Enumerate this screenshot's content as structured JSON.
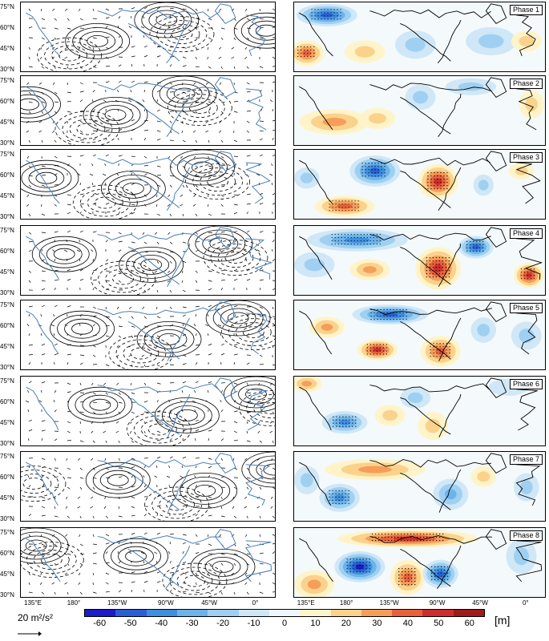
{
  "latitude_labels": [
    "75°N",
    "60°N",
    "45°N",
    "30°N"
  ],
  "longitude_labels": [
    "135°E",
    "180°",
    "135°W",
    "90°W",
    "45°W",
    "0°"
  ],
  "phases": [
    "Phase 1",
    "Phase 2",
    "Phase 3",
    "Phase 4",
    "Phase 5",
    "Phase 6",
    "Phase 7",
    "Phase 8"
  ],
  "colorbar": {
    "ticks": [
      "-60",
      "-50",
      "-40",
      "-30",
      "-20",
      "-10",
      "0",
      "10",
      "20",
      "30",
      "40",
      "50",
      "60"
    ],
    "unit": "[m]",
    "colors": [
      "#1c1cc8",
      "#2a5fd6",
      "#3f8fe0",
      "#6cb3ea",
      "#9fd0f1",
      "#cfe7f7",
      "#eef7fc",
      "#fff4c9",
      "#fbd28c",
      "#f59e5a",
      "#e8613c",
      "#cf2d2d",
      "#a01a1a"
    ]
  },
  "reference_vector": {
    "label": "20 m²/s²"
  }
}
